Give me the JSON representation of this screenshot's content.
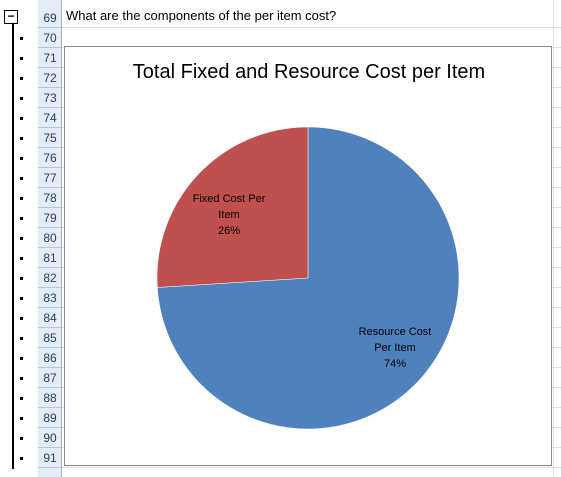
{
  "sheet": {
    "question_text": "What are the components of the per item cost?",
    "row_numbers": [
      "69",
      "70",
      "71",
      "72",
      "73",
      "74",
      "75",
      "76",
      "77",
      "78",
      "79",
      "80",
      "81",
      "82",
      "83",
      "84",
      "85",
      "86",
      "87",
      "88",
      "89",
      "90",
      "91"
    ],
    "collapse_symbol": "−"
  },
  "chart_data": {
    "type": "pie",
    "title": "Total Fixed and Resource Cost per Item",
    "slices": [
      {
        "label_line1": "Resource Cost",
        "label_line2": "Per Item",
        "percent_label": "74%",
        "value": 74,
        "color": "#4f81bd"
      },
      {
        "label_line1": "Fixed Cost Per",
        "label_line2": "Item",
        "percent_label": "26%",
        "value": 26,
        "color": "#c0504d"
      }
    ]
  }
}
